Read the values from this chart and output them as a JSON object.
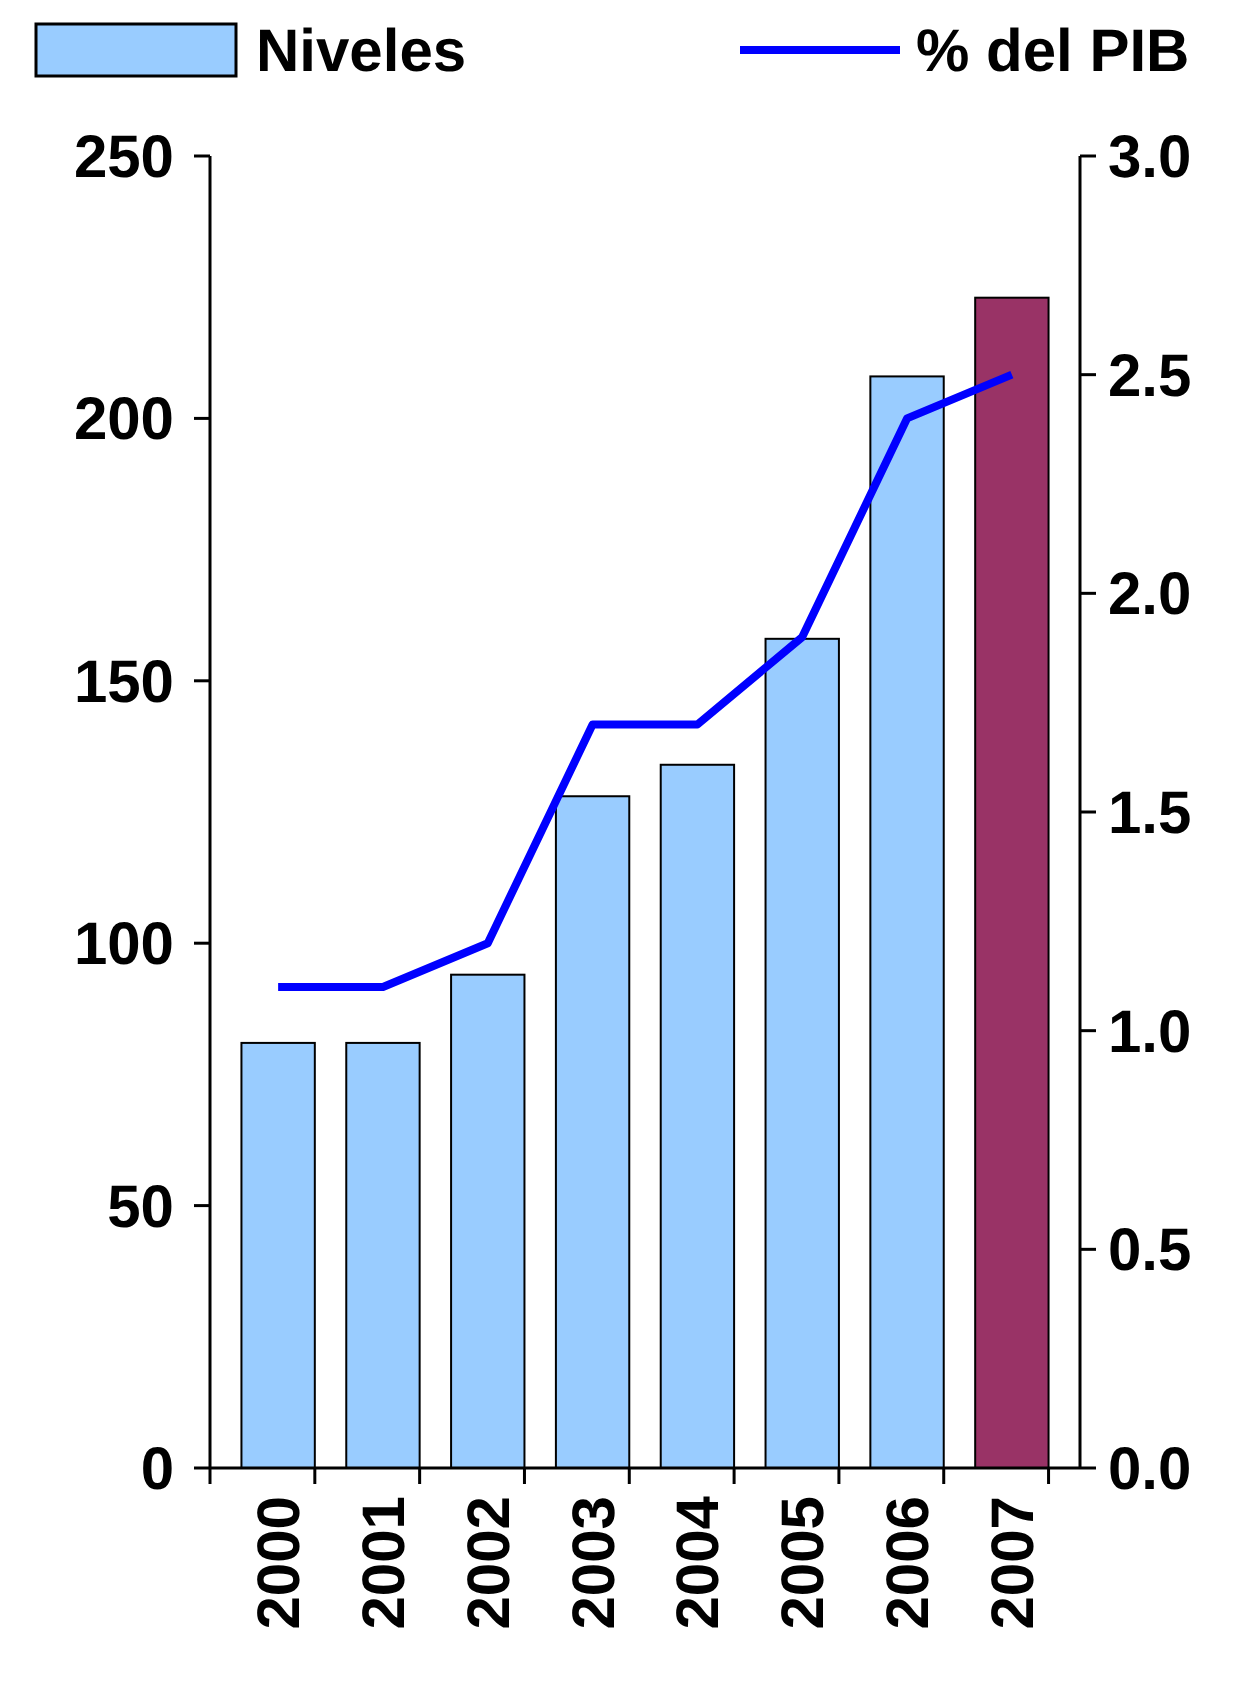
{
  "chart_data": {
    "type": "bar",
    "categories": [
      "2000",
      "2001",
      "2002",
      "2003",
      "2004",
      "2005",
      "2006",
      "2007"
    ],
    "series": [
      {
        "name": "Niveles",
        "color": "#99ccff",
        "colors": [
          "#99ccff",
          "#99ccff",
          "#99ccff",
          "#99ccff",
          "#99ccff",
          "#99ccff",
          "#99ccff",
          "#993366"
        ],
        "values": [
          81,
          81,
          94,
          128,
          134,
          158,
          208,
          223
        ]
      },
      {
        "name": "% del PIB",
        "type": "line",
        "axis": "y2",
        "color": "#0000ff",
        "values": [
          1.1,
          1.1,
          1.2,
          1.7,
          1.7,
          1.9,
          2.4,
          2.5
        ]
      }
    ],
    "ylim": [
      0,
      250
    ],
    "yticks": [
      0,
      50,
      100,
      150,
      200,
      250
    ],
    "y2lim": [
      0,
      3
    ],
    "y2ticks": [
      {
        "value": 0,
        "label": "0.0"
      },
      {
        "value": 0.5,
        "label": "0.5"
      },
      {
        "value": 1,
        "label": "1.0"
      },
      {
        "value": 1.5,
        "label": "1.5"
      },
      {
        "value": 2,
        "label": "2.0"
      },
      {
        "value": 2.5,
        "label": "2.5"
      },
      {
        "value": 3,
        "label": "3.0"
      }
    ],
    "legend": "top",
    "grid": false,
    "line_style": "solid",
    "marker": "none"
  }
}
